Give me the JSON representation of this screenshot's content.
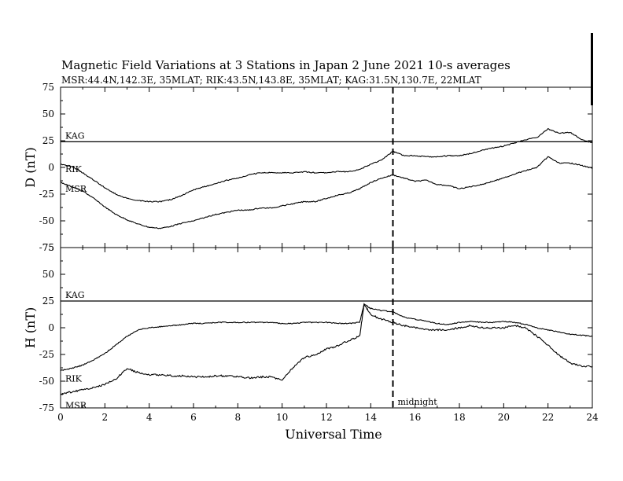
{
  "chart_data": [
    {
      "type": "line",
      "panel": "top",
      "title": "Magnetic Field Variations at 3 Stations in Japan        2   June      2021      10-s averages",
      "subtitle": "MSR:44.4N,142.3E, 35MLAT;  RIK:43.5N,143.8E, 35MLAT;  KAG:31.5N,130.7E, 22MLAT",
      "ylabel": "D (nT)",
      "xlabel": "",
      "xlim": [
        0,
        24
      ],
      "ylim": [
        -75,
        75
      ],
      "yticks": [
        "75",
        "50",
        "25",
        "0",
        "-25",
        "-50",
        "-75"
      ],
      "grid": false,
      "series": [
        {
          "name": "KAG",
          "x": [
            0,
            24
          ],
          "y": [
            24,
            24
          ]
        },
        {
          "name": "RIK",
          "x": [
            0,
            0.5,
            1,
            1.5,
            2,
            2.5,
            3,
            3.5,
            4,
            4.5,
            5,
            5.5,
            6,
            6.5,
            7,
            7.5,
            8,
            8.5,
            9,
            9.5,
            10,
            10.5,
            11,
            11.5,
            12,
            12.5,
            13,
            13.5,
            14,
            14.5,
            15,
            15.5,
            16,
            16.5,
            17,
            17.5,
            18,
            18.5,
            19,
            19.5,
            20,
            20.5,
            21,
            21.5,
            22,
            22.5,
            23,
            23.5,
            24
          ],
          "y": [
            3,
            1,
            -5,
            -12,
            -19,
            -25,
            -29,
            -31,
            -32,
            -32,
            -30,
            -26,
            -21,
            -18,
            -15,
            -12,
            -10,
            -7,
            -5,
            -5,
            -5,
            -5,
            -4,
            -5,
            -5,
            -4,
            -4,
            -2,
            3,
            7,
            15,
            11,
            11,
            10,
            10,
            11,
            11,
            13,
            16,
            18,
            20,
            23,
            26,
            28,
            36,
            32,
            33,
            26,
            23
          ]
        },
        {
          "name": "MSR",
          "x": [
            0,
            0.5,
            1,
            1.5,
            2,
            2.5,
            3,
            3.5,
            4,
            4.5,
            5,
            5.5,
            6,
            6.5,
            7,
            7.5,
            8,
            8.5,
            9,
            9.5,
            10,
            10.5,
            11,
            11.5,
            12,
            12.5,
            13,
            13.5,
            14,
            14.5,
            15,
            15.5,
            16,
            16.5,
            17,
            17.5,
            18,
            18.5,
            19,
            19.5,
            20,
            20.5,
            21,
            21.5,
            22,
            22.5,
            23,
            23.5,
            24
          ],
          "y": [
            -14,
            -18,
            -22,
            -29,
            -37,
            -44,
            -49,
            -53,
            -56,
            -57,
            -55,
            -52,
            -50,
            -47,
            -44,
            -42,
            -40,
            -40,
            -38,
            -38,
            -36,
            -34,
            -32,
            -32,
            -29,
            -26,
            -24,
            -20,
            -14,
            -10,
            -7,
            -10,
            -13,
            -12,
            -16,
            -17,
            -20,
            -18,
            -16,
            -13,
            -10,
            -6,
            -3,
            0,
            10,
            4,
            4,
            2,
            -1
          ]
        }
      ]
    },
    {
      "type": "line",
      "panel": "bottom",
      "title": "",
      "ylabel": "H (nT)",
      "xlabel": "Universal Time",
      "xlim": [
        0,
        24
      ],
      "ylim": [
        -75,
        75
      ],
      "yticks": [
        "75",
        "50",
        "25",
        "0",
        "-25",
        "-50",
        "-75"
      ],
      "xticks": [
        "0",
        "2",
        "4",
        "6",
        "8",
        "10",
        "12",
        "14",
        "16",
        "18",
        "20",
        "22",
        "24"
      ],
      "grid": false,
      "annotations": [
        {
          "text": "midnight",
          "x": 15,
          "style": "dashed-vertical"
        }
      ],
      "series": [
        {
          "name": "KAG",
          "x": [
            0,
            24
          ],
          "y": [
            25,
            25
          ]
        },
        {
          "name": "RIK",
          "x": [
            0,
            0.5,
            1,
            1.5,
            2,
            2.5,
            3,
            3.5,
            4,
            4.5,
            5,
            5.5,
            6,
            6.5,
            7,
            7.5,
            8,
            8.5,
            9,
            9.5,
            10,
            10.5,
            11,
            11.5,
            12,
            12.5,
            13,
            13.5,
            13.7,
            14,
            14.5,
            15,
            15.5,
            16,
            16.5,
            17,
            17.5,
            18,
            18.5,
            19,
            19.5,
            20,
            20.5,
            21,
            21.5,
            22,
            22.5,
            23,
            23.5,
            24
          ],
          "y": [
            -40,
            -38,
            -35,
            -30,
            -24,
            -16,
            -8,
            -2,
            0,
            1,
            2,
            3,
            4,
            4,
            5,
            5,
            5,
            5,
            5,
            5,
            4,
            4,
            5,
            5,
            5,
            4,
            4,
            5,
            22,
            18,
            16,
            15,
            10,
            8,
            6,
            4,
            3,
            5,
            6,
            5,
            5,
            6,
            5,
            3,
            0,
            -2,
            -4,
            -6,
            -7,
            -8
          ]
        },
        {
          "name": "MSR",
          "x": [
            0,
            0.5,
            1,
            1.5,
            2,
            2.5,
            3,
            3.5,
            4,
            4.5,
            5,
            5.5,
            6,
            6.5,
            7,
            7.5,
            8,
            8.5,
            9,
            9.5,
            10,
            10.5,
            11,
            11.5,
            12,
            12.5,
            13,
            13.5,
            13.7,
            14,
            14.5,
            15,
            15.5,
            16,
            16.5,
            17,
            17.5,
            18,
            18.5,
            19,
            19.5,
            20,
            20.5,
            21,
            21.5,
            22,
            22.5,
            23,
            23.5,
            24
          ],
          "y": [
            -62,
            -60,
            -58,
            -56,
            -53,
            -48,
            -38,
            -42,
            -44,
            -44,
            -45,
            -45,
            -46,
            -46,
            -45,
            -45,
            -46,
            -47,
            -46,
            -46,
            -49,
            -37,
            -28,
            -25,
            -20,
            -17,
            -12,
            -8,
            22,
            12,
            8,
            5,
            2,
            0,
            -2,
            -2,
            -2,
            0,
            2,
            0,
            0,
            0,
            2,
            0,
            -8,
            -16,
            -26,
            -33,
            -36,
            -36
          ]
        }
      ]
    }
  ]
}
